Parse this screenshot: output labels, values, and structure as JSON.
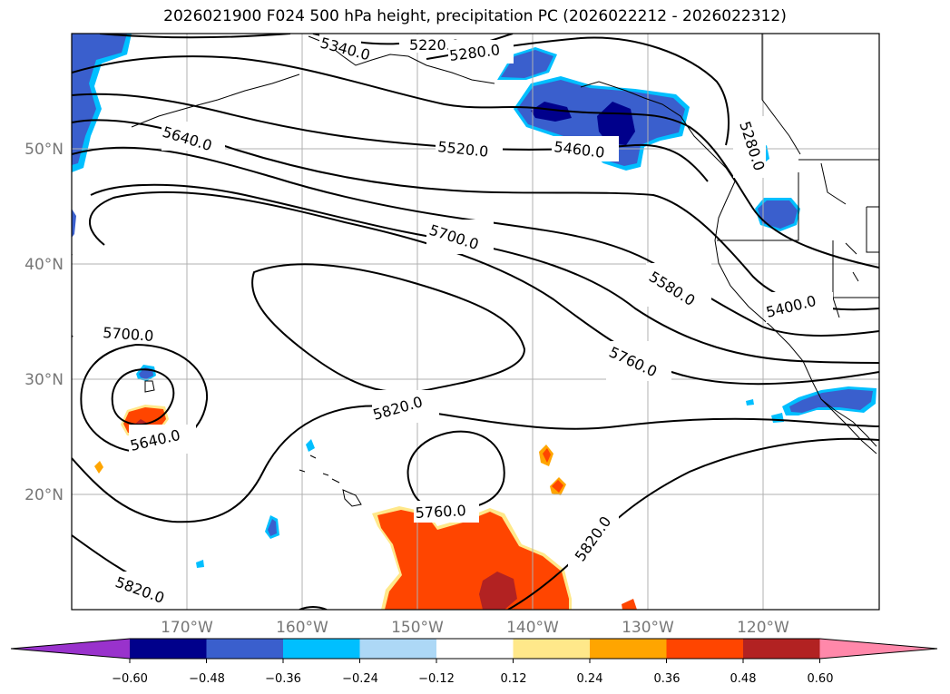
{
  "title": "2026021900 F024 500 hPa height, precipitation PC (2026022212 - 2026022312)",
  "lat_labels": [
    "50°N",
    "40°N",
    "30°N",
    "20°N"
  ],
  "lon_labels": [
    "170°W",
    "160°W",
    "150°W",
    "140°W",
    "130°W",
    "120°W"
  ],
  "contour_labels": [
    "5340.0",
    "5220.0",
    "5280.0",
    "5640.0",
    "5520.0",
    "5460.0",
    "5280.0",
    "5700.0",
    "5580.0",
    "5400.0",
    "5700.0",
    "5760.0",
    "5820.0",
    "5640.0",
    "5760.0",
    "5820.0",
    "5820.0"
  ],
  "colorbar": {
    "ticks": [
      "−0.60",
      "−0.48",
      "−0.36",
      "−0.24",
      "−0.12",
      "0.12",
      "0.24",
      "0.36",
      "0.48",
      "0.60"
    ],
    "colors": [
      "#9932cc",
      "#00008b",
      "#3a5fcd",
      "#00bfff",
      "#add8f6",
      "#ffffff",
      "#ffe88a",
      "#ffa500",
      "#ff4500",
      "#b22222",
      "#ff88aa"
    ]
  },
  "colors": {
    "contour": "#000000",
    "coast": "#000000",
    "grid": "#b0b0b0",
    "label_gray": "#777777"
  }
}
